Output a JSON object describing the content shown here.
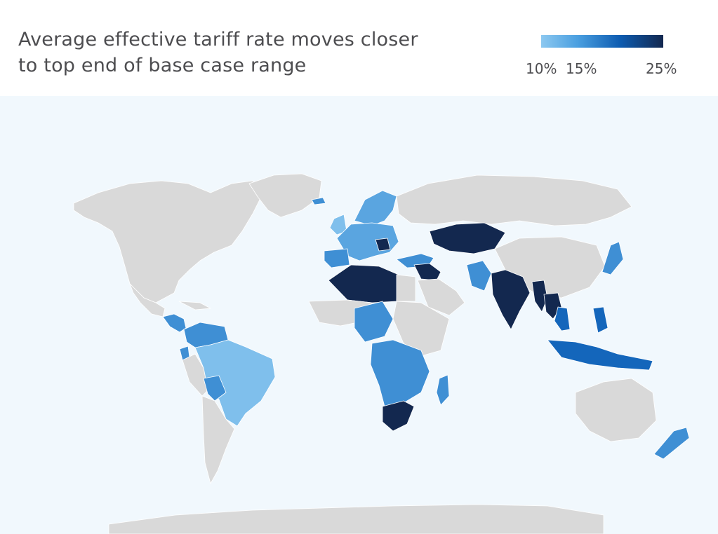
{
  "header": {
    "title_line1": "Average effective tariff rate moves closer",
    "title_line2": "to top end of base case range"
  },
  "legend": {
    "labels": [
      "10%",
      "15%",
      "25%"
    ],
    "gradient_colors": [
      "#8cc8f0",
      "#4a9fe0",
      "#0d5bb0",
      "#13284f"
    ]
  },
  "colors": {
    "ocean": "#f1f8fd",
    "land_no_data": "#d9d9d9",
    "border": "#ffffff",
    "rate_10": "#7fbfec",
    "rate_12": "#5aa5e0",
    "rate_15": "#3f8fd4",
    "rate_20": "#1466bb",
    "rate_25": "#13284f"
  },
  "map": {
    "countries": [
      {
        "name": "Brazil",
        "rate": "10%"
      },
      {
        "name": "Libya",
        "rate": "25%"
      },
      {
        "name": "Algeria",
        "rate": "25%"
      },
      {
        "name": "Iraq",
        "rate": "25%"
      },
      {
        "name": "India",
        "rate": "25%"
      },
      {
        "name": "Kazakhstan",
        "rate": "25%"
      },
      {
        "name": "South Africa",
        "rate": "25%"
      },
      {
        "name": "Myanmar",
        "rate": "25%"
      },
      {
        "name": "Laos",
        "rate": "25%"
      }
    ]
  }
}
